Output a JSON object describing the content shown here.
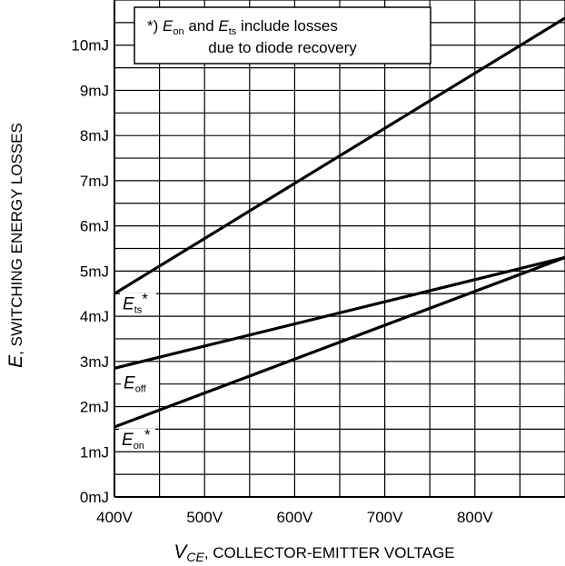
{
  "chart_data": {
    "type": "line",
    "x_axis": {
      "label_symbol": "V",
      "label_subscript": "CE",
      "label_text": ", COLLECTOR-EMITTER VOLTAGE",
      "range": [
        400,
        900
      ],
      "tick_values": [
        400,
        500,
        600,
        700,
        800
      ],
      "tick_labels": [
        "400V",
        "500V",
        "600V",
        "700V",
        "800V"
      ],
      "minor_step": 50
    },
    "y_axis": {
      "label_symbol": "E",
      "label_text": ", SWITCHING ENERGY LOSSES",
      "range": [
        0,
        11
      ],
      "tick_values": [
        0,
        1,
        2,
        3,
        4,
        5,
        6,
        7,
        8,
        9,
        10
      ],
      "tick_labels": [
        "0mJ",
        "1mJ",
        "2mJ",
        "3mJ",
        "4mJ",
        "5mJ",
        "6mJ",
        "7mJ",
        "8mJ",
        "9mJ",
        "10mJ"
      ],
      "minor_step": 0.5
    },
    "grid": true,
    "note": {
      "prefix": "*) ",
      "sym1": "E",
      "sub1": "on",
      "mid": " and ",
      "sym2": "E",
      "sub2": "ts",
      "suffix": " include losses",
      "line2": "due to diode recovery"
    },
    "series": [
      {
        "id": "ets",
        "sym": "E",
        "sub": "ts",
        "suffix": "*",
        "x": [
          400,
          900
        ],
        "y": [
          4.5,
          10.6
        ]
      },
      {
        "id": "eoff",
        "sym": "E",
        "sub": "off",
        "suffix": "",
        "x": [
          400,
          900
        ],
        "y": [
          2.85,
          5.3
        ]
      },
      {
        "id": "eon",
        "sym": "E",
        "sub": "on",
        "suffix": "*",
        "x": [
          400,
          900
        ],
        "y": [
          1.55,
          5.3
        ]
      }
    ]
  }
}
